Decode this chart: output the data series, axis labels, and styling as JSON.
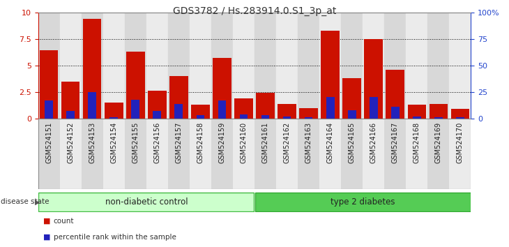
{
  "title": "GDS3782 / Hs.283914.0.S1_3p_at",
  "samples": [
    "GSM524151",
    "GSM524152",
    "GSM524153",
    "GSM524154",
    "GSM524155",
    "GSM524156",
    "GSM524157",
    "GSM524158",
    "GSM524159",
    "GSM524160",
    "GSM524161",
    "GSM524162",
    "GSM524163",
    "GSM524164",
    "GSM524165",
    "GSM524166",
    "GSM524167",
    "GSM524168",
    "GSM524169",
    "GSM524170"
  ],
  "count_values": [
    6.4,
    3.5,
    9.4,
    1.5,
    6.3,
    2.6,
    4.0,
    1.3,
    5.7,
    1.9,
    2.4,
    1.4,
    1.0,
    8.3,
    3.8,
    7.5,
    4.6,
    1.3,
    1.4,
    0.9
  ],
  "percentile_values": [
    17,
    7,
    25,
    1,
    18,
    7,
    14,
    3,
    17,
    4,
    3,
    2,
    1,
    20,
    8,
    20,
    11,
    2,
    1,
    1
  ],
  "count_color": "#cc1100",
  "percentile_color": "#2222bb",
  "bar_bg_odd": "#d8d8d8",
  "bar_bg_even": "#ebebeb",
  "ylim_left": [
    0,
    10
  ],
  "ylim_right": [
    0,
    100
  ],
  "yticks_left": [
    0,
    2.5,
    5.0,
    7.5,
    10
  ],
  "yticks_right": [
    0,
    25,
    50,
    75,
    100
  ],
  "group1_label": "non-diabetic control",
  "group1_count": 10,
  "group2_label": "type 2 diabetes",
  "group2_count": 10,
  "group1_color": "#ccffcc",
  "group1_edge": "#44bb44",
  "group2_color": "#55cc55",
  "group2_edge": "#33aa33",
  "disease_state_label": "disease state",
  "legend_count": "count",
  "legend_percentile": "percentile rank within the sample",
  "background_color": "#ffffff",
  "axis_color_left": "#cc1100",
  "axis_color_right": "#2244cc",
  "spine_color": "#888888",
  "title_fontsize": 10,
  "tick_fontsize": 7,
  "ytick_fontsize": 8
}
